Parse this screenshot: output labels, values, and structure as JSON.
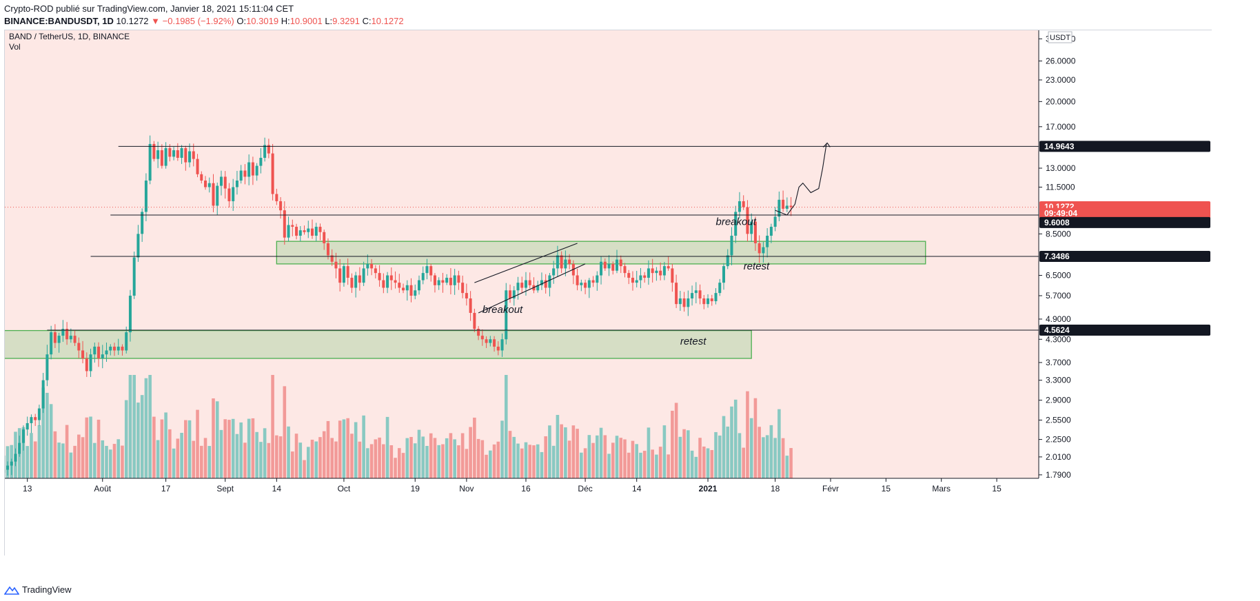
{
  "header": {
    "line1": "Crypto-ROD publié sur TradingView.com, Janvier 18, 2021 15:11:04 CET",
    "symbol": "BINANCE:BANDUSDT, 1D",
    "last": "10.1272",
    "change": "▼ −0.1985 (−1.92%)",
    "o_label": "O:",
    "o": "10.3019",
    "h_label": "H:",
    "h": "10.9001",
    "l_label": "L:",
    "l": "9.3291",
    "c_label": "C:",
    "c": "10.1272"
  },
  "legend": {
    "title": "BAND / TetherUS, 1D, BINANCE",
    "vol": "Vol"
  },
  "footer": {
    "brand": "TradingView"
  },
  "chart_data": {
    "type": "candlestick",
    "y_scale": "log",
    "ylim": [
      1.75,
      31.0
    ],
    "currency": "USDT",
    "y_ticks": [
      "30.0000",
      "26.0000",
      "23.0000",
      "20.0000",
      "17.0000",
      "13.0000",
      "11.5000",
      "8.5000",
      "6.5000",
      "5.7000",
      "4.9000",
      "4.3000",
      "3.7000",
      "3.3000",
      "2.9000",
      "2.5500",
      "2.2500",
      "2.0100",
      "1.7900"
    ],
    "x_ticks": [
      "13",
      "Août",
      "17",
      "Sept",
      "14",
      "Oct",
      "19",
      "Nov",
      "16",
      "Déc",
      "14",
      "2021",
      "18",
      "Févr",
      "15",
      "Mars",
      "15"
    ],
    "price_labels": [
      {
        "value": "14.9643",
        "style": "black"
      },
      {
        "value": "10.1272",
        "style": "red"
      },
      {
        "value": "09:49:04",
        "style": "red"
      },
      {
        "value": "9.6008",
        "style": "black"
      },
      {
        "value": "7.3486",
        "style": "black"
      },
      {
        "value": "4.5624",
        "style": "black"
      }
    ],
    "annotations": [
      "breakout",
      "retest",
      "breakout",
      "retest"
    ],
    "horizontal_levels": [
      14.9643,
      9.6008,
      7.3486,
      4.5624
    ],
    "zones": [
      {
        "from": "2020-09-14",
        "to": "2021-02-25",
        "low": 7.0,
        "high": 8.1
      },
      {
        "from": "2020-07-01",
        "to": "2021-01-12",
        "low": 3.8,
        "high": 4.55
      }
    ],
    "colors": {
      "up": "#26a69a",
      "down": "#ef5350",
      "volume_up": "#89c9c2",
      "volume_down": "#f29a98",
      "zone": "#cfdcbf",
      "zone_border": "#4caf50"
    },
    "ohlc_daily": {
      "start": "2020-07-07",
      "closes": [
        1.85,
        1.9,
        1.95,
        2.05,
        2.2,
        2.4,
        2.5,
        2.6,
        2.55,
        2.75,
        3.3,
        3.9,
        4.5,
        4.2,
        4.4,
        4.6,
        4.3,
        4.4,
        4.2,
        4.0,
        3.8,
        3.5,
        3.9,
        4.1,
        3.8,
        3.9,
        4.0,
        4.1,
        4.0,
        4.1,
        4.0,
        4.5,
        5.7,
        7.3,
        8.5,
        9.8,
        12.0,
        15.2,
        13.8,
        14.6,
        13.2,
        14.8,
        14.0,
        14.6,
        13.9,
        14.8,
        13.5,
        14.5,
        13.8,
        12.5,
        12.0,
        11.5,
        11.8,
        10.2,
        11.6,
        12.3,
        11.4,
        10.5,
        11.5,
        12.0,
        12.8,
        12.3,
        13.5,
        12.4,
        13.2,
        13.9,
        15.1,
        14.3,
        11.0,
        10.5,
        9.9,
        8.3,
        9.0,
        8.9,
        8.4,
        8.7,
        8.6,
        8.8,
        8.4,
        8.9,
        8.6,
        8.0,
        7.4,
        7.1,
        6.8,
        6.2,
        6.9,
        6.4,
        6.0,
        6.5,
        6.2,
        6.8,
        7.0,
        6.8,
        6.6,
        6.3,
        6.0,
        6.5,
        6.3,
        6.2,
        6.0,
        5.9,
        6.1,
        5.7,
        5.9,
        6.3,
        6.6,
        6.9,
        6.5,
        6.1,
        6.3,
        6.2,
        6.4,
        6.1,
        6.5,
        6.2,
        5.8,
        5.6,
        5.1,
        4.6,
        4.4,
        4.3,
        4.2,
        4.3,
        4.1,
        4.0,
        4.3,
        5.9,
        5.6,
        5.9,
        6.2,
        6.0,
        6.3,
        6.1,
        5.9,
        6.1,
        6.3,
        6.0,
        6.5,
        6.8,
        7.4,
        6.8,
        7.2,
        7.0,
        6.5,
        6.1,
        6.2,
        6.0,
        6.3,
        6.2,
        6.5,
        7.1,
        6.8,
        7.0,
        6.7,
        7.2,
        6.9,
        6.6,
        6.4,
        6.2,
        6.3,
        6.5,
        6.4,
        6.8,
        6.6,
        6.7,
        6.5,
        6.9,
        6.8,
        6.2,
        5.4,
        5.6,
        5.3,
        5.6,
        5.8,
        5.9,
        5.6,
        5.4,
        5.6,
        5.5,
        5.8,
        6.2,
        6.9,
        7.4,
        8.4,
        9.8,
        10.5,
        10.1,
        8.5,
        9.2,
        8.0,
        7.5,
        7.8,
        8.4,
        8.9,
        9.5,
        10.6,
        10.0,
        10.2,
        10.1
      ]
    }
  }
}
